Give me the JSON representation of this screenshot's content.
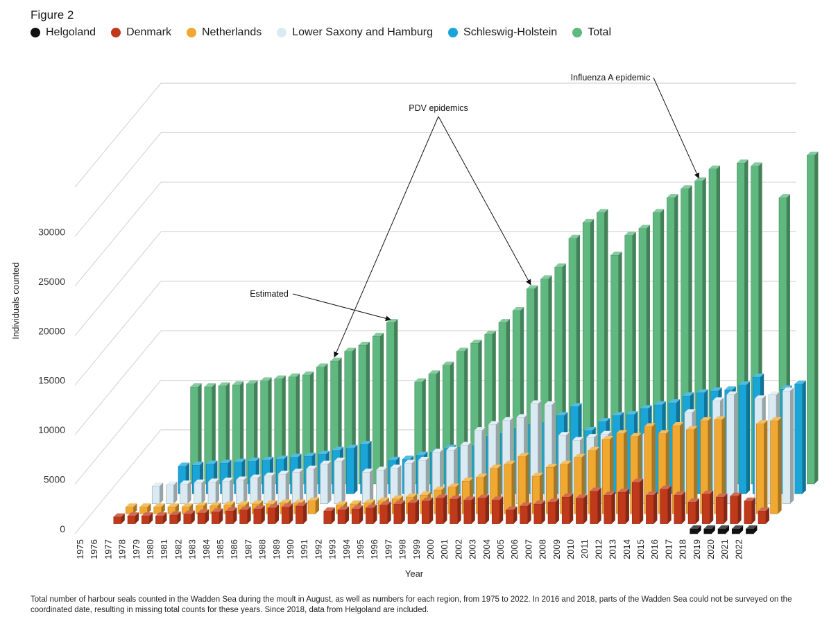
{
  "figure_label": "Figure 2",
  "caption": "Total number of harbour seals counted in the Wadden Sea during the moult in August, as well as numbers for each region, from 1975 to 2022. In 2016 and 2018, parts of the Wadden Sea could not be surveyed on the coordinated date, resulting in missing total counts for these years. Since 2018, data from Helgoland are included.",
  "chart_data": {
    "type": "bar",
    "title": "Figure 2",
    "xlabel": "Year",
    "ylabel": "Individuals counted",
    "ylim": [
      0,
      35000
    ],
    "yticks": [
      0,
      5000,
      10000,
      15000,
      20000,
      25000,
      30000
    ],
    "legend_position": "top",
    "grid": true,
    "categories": [
      "1975",
      "1976",
      "1977",
      "1978",
      "1979",
      "1980",
      "1981",
      "1982",
      "1983",
      "1984",
      "1985",
      "1986",
      "1987",
      "1988",
      "1989",
      "1990",
      "1991",
      "1992",
      "1993",
      "1994",
      "1995",
      "1996",
      "1997",
      "1998",
      "1999",
      "2000",
      "2001",
      "2002",
      "2003",
      "2004",
      "2005",
      "2006",
      "2007",
      "2008",
      "2009",
      "2010",
      "2011",
      "2012",
      "2013",
      "2014",
      "2015",
      "2016",
      "2017",
      "2018",
      "2019",
      "2020",
      "2021",
      "2022"
    ],
    "series": [
      {
        "name": "Helgoland",
        "color": "#111111",
        "values": [
          null,
          null,
          null,
          null,
          null,
          null,
          null,
          null,
          null,
          null,
          null,
          null,
          null,
          null,
          null,
          null,
          null,
          null,
          null,
          null,
          null,
          null,
          null,
          null,
          null,
          null,
          null,
          null,
          null,
          null,
          null,
          null,
          null,
          null,
          null,
          null,
          null,
          null,
          null,
          null,
          null,
          null,
          null,
          500,
          500,
          500,
          500,
          500
        ]
      },
      {
        "name": "Denmark",
        "color": "#c0391b",
        "values": [
          null,
          700,
          800,
          800,
          800,
          900,
          1000,
          1100,
          1200,
          1300,
          1400,
          1500,
          1600,
          1700,
          1800,
          null,
          1300,
          1400,
          1500,
          1600,
          1900,
          2000,
          2100,
          2300,
          2600,
          2500,
          2400,
          2600,
          2400,
          1400,
          1800,
          2000,
          2200,
          2700,
          2600,
          3300,
          2900,
          3200,
          4200,
          2900,
          3500,
          2900,
          2200,
          3000,
          2700,
          2800,
          2300,
          1300
        ]
      },
      {
        "name": "Netherlands",
        "color": "#f0a830",
        "values": [
          null,
          700,
          700,
          700,
          700,
          700,
          800,
          800,
          900,
          900,
          1000,
          1000,
          1100,
          1100,
          1300,
          null,
          900,
          1000,
          1100,
          1300,
          1500,
          1700,
          1900,
          2400,
          2700,
          3300,
          3700,
          4600,
          5000,
          5800,
          3800,
          4700,
          5000,
          5700,
          6400,
          7500,
          8100,
          7800,
          8800,
          8100,
          8900,
          8500,
          9400,
          9500,
          null,
          null,
          9100,
          9400
        ]
      },
      {
        "name": "Lower Saxony and Hamburg",
        "color": "#daeaf2",
        "values": [
          null,
          null,
          1800,
          1900,
          2000,
          2100,
          2200,
          2300,
          2400,
          2600,
          2800,
          3000,
          3200,
          3500,
          4000,
          4300,
          null,
          3200,
          3400,
          3600,
          4100,
          4400,
          5200,
          5400,
          5900,
          7400,
          8000,
          8400,
          8700,
          10100,
          10000,
          6900,
          6400,
          6700,
          7000,
          null,
          null,
          7000,
          null,
          null,
          9200,
          null,
          10400,
          11000,
          null,
          10600,
          11000,
          11400
        ]
      },
      {
        "name": "Schleswig-Holstein",
        "color": "#1aa5d8",
        "values": [
          null,
          null,
          null,
          2800,
          2900,
          3000,
          3100,
          3200,
          3300,
          3400,
          3500,
          3700,
          3800,
          4000,
          4400,
          4600,
          5000,
          null,
          3400,
          3500,
          3900,
          4200,
          4600,
          4700,
          4900,
          5800,
          6100,
          6600,
          7000,
          7200,
          7900,
          8800,
          6400,
          7300,
          7900,
          8000,
          8600,
          9000,
          9200,
          9900,
          10200,
          10400,
          10500,
          11000,
          11800,
          null,
          10600,
          11100
        ]
      },
      {
        "name": "Total",
        "color": "#5fb87f",
        "values": [
          null,
          null,
          null,
          9800,
          9800,
          9900,
          10000,
          10100,
          10400,
          10600,
          10800,
          11000,
          11800,
          12400,
          13400,
          14000,
          14900,
          16300,
          null,
          10300,
          11100,
          12000,
          13400,
          14200,
          15100,
          16300,
          17500,
          19700,
          20700,
          21900,
          24800,
          26400,
          27400,
          23100,
          25100,
          25800,
          27400,
          28900,
          29800,
          30600,
          31800,
          null,
          32400,
          32100,
          null,
          28900,
          null,
          33200
        ]
      }
    ],
    "annotations": [
      {
        "text": "Estimated",
        "target_year": "1992",
        "target_series": "Total"
      },
      {
        "text": "PDV epidemics",
        "target_years": [
          "1988",
          "2002"
        ],
        "target_series": "Total"
      },
      {
        "text": "Influenza A epidemic",
        "target_year": "2014",
        "target_series": "Total"
      }
    ]
  }
}
